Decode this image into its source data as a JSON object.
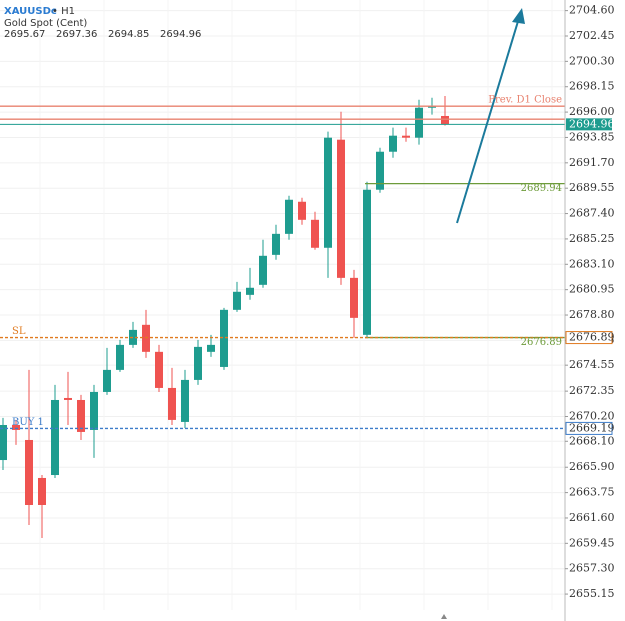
{
  "chart_data": {
    "type": "candlestick",
    "title": "XAUUSDc",
    "timeframe": "• H1",
    "subtitle": "Gold Spot (Cent)",
    "open": [
      2666.51,
      2669.48,
      2668.21,
      2664.99,
      2665.24,
      2671.77,
      2671.6,
      2669.06,
      2672.28,
      2674.15,
      2676.27,
      2677.97,
      2675.68,
      2672.62,
      2669.74,
      2673.3,
      2675.68,
      2674.4,
      2679.24,
      2680.51,
      2681.36,
      2683.9,
      2685.68,
      2688.4,
      2686.87,
      2684.5,
      2693.66,
      2681.95,
      2677.12,
      2689.42,
      2692.64,
      2694.0,
      2693.83,
      2696.37,
      2695.67
    ],
    "high": [
      2670.08,
      2669.91,
      2674.15,
      2665.24,
      2672.88,
      2673.98,
      2672.03,
      2672.88,
      2676.02,
      2676.69,
      2678.22,
      2679.24,
      2676.27,
      2674.32,
      2674.15,
      2676.69,
      2677.12,
      2679.41,
      2681.61,
      2682.8,
      2685.18,
      2686.45,
      2688.91,
      2688.74,
      2687.55,
      2694.34,
      2696.03,
      2682.63,
      2690.1,
      2692.98,
      2694.68,
      2694.68,
      2697.05,
      2697.22,
      2697.36
    ],
    "low": [
      2665.67,
      2667.79,
      2661.0,
      2659.9,
      2664.99,
      2669.48,
      2668.21,
      2666.69,
      2672.03,
      2673.98,
      2676.02,
      2675.17,
      2672.28,
      2669.48,
      2669.23,
      2672.88,
      2675.25,
      2674.15,
      2679.07,
      2680.09,
      2681.11,
      2683.48,
      2685.18,
      2686.45,
      2684.33,
      2681.95,
      2681.36,
      2676.86,
      2676.86,
      2689.16,
      2692.13,
      2693.49,
      2693.24,
      2695.78,
      2694.85
    ],
    "close": [
      2669.48,
      2669.06,
      2662.7,
      2662.7,
      2671.6,
      2671.6,
      2668.89,
      2672.28,
      2674.15,
      2676.27,
      2677.54,
      2675.68,
      2672.62,
      2669.91,
      2673.3,
      2676.1,
      2676.27,
      2679.24,
      2680.77,
      2681.11,
      2683.82,
      2685.68,
      2688.57,
      2686.87,
      2684.5,
      2693.83,
      2681.95,
      2678.56,
      2689.42,
      2692.64,
      2694.0,
      2693.83,
      2696.37,
      2696.54,
      2694.96
    ],
    "up_color": "#1e9c8f",
    "down_color": "#ef5350",
    "ylim": [
      2653.8,
      2705.5
    ],
    "yticks": [
      {
        "value": 2704.6,
        "label": "2704.60"
      },
      2702.45,
      {
        "value": 2700.3,
        "label": "2700.30"
      },
      2698.15,
      {
        "value": 2696,
        "label": "2696.00"
      },
      2693.85,
      {
        "value": 2691.7,
        "label": "2691.70"
      },
      2689.55,
      {
        "value": 2687.4,
        "label": "2687.40"
      },
      2685.25,
      {
        "value": 2683.1,
        "label": "2683.10"
      },
      2680.95,
      {
        "value": 2678.8,
        "label": "2678.80"
      },
      2676.65,
      2674.55,
      2672.35,
      {
        "value": 2670.2,
        "label": "2670.20"
      },
      {
        "value": 2668.1,
        "label": "2668.10"
      },
      {
        "value": 2665.9,
        "label": "2665.90"
      },
      2663.75,
      {
        "value": 2661.6,
        "label": "2661.60"
      },
      2659.45,
      {
        "value": 2657.3,
        "label": "2657.30"
      },
      2655.15
    ],
    "grid": true,
    "levels": [
      {
        "label": "Prev. D1 Close",
        "value": 2696.5,
        "color": "#e8826f",
        "style": "solid"
      },
      {
        "value": 2695.4,
        "color": "#e8826f",
        "style": "solid"
      },
      {
        "value": 2689.94,
        "color": "#6d9b3a",
        "style": "solid",
        "from": 28,
        "show": "inline"
      },
      {
        "value": 2676.89,
        "color": "#6d9b3a",
        "style": "solid",
        "from": 28,
        "show": "inline"
      },
      {
        "label": "SL",
        "value": 2676.89,
        "color": "#e07a1f",
        "style": "dashed",
        "show": "tag"
      },
      {
        "label": "BUY 1",
        "value": 2669.19,
        "color": "#3d7cc9",
        "style": "dashed",
        "show": "tag"
      }
    ]
  }
}
